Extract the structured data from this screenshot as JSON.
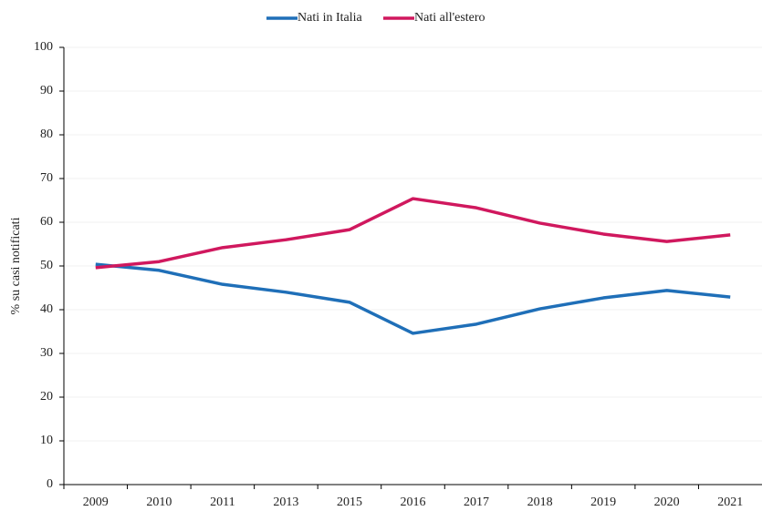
{
  "chart_data": {
    "type": "line",
    "ylabel": "% su casi notificati",
    "categories": [
      "2009",
      "2010",
      "2011",
      "2013",
      "2015",
      "2016",
      "2017",
      "2018",
      "2019",
      "2020",
      "2021"
    ],
    "series": [
      {
        "name": "Nati in Italia",
        "color": "#1f6fb8",
        "values": [
          50.4,
          49.0,
          45.8,
          44.0,
          41.7,
          34.6,
          36.7,
          40.2,
          42.7,
          44.4,
          42.9
        ]
      },
      {
        "name": "Nati all'estero",
        "color": "#d0185e",
        "values": [
          49.6,
          51.0,
          54.2,
          56.0,
          58.3,
          65.4,
          63.3,
          59.8,
          57.3,
          55.6,
          57.1
        ]
      }
    ],
    "ylim": [
      0,
      100
    ],
    "yticks": [
      0,
      10,
      20,
      30,
      40,
      50,
      60,
      70,
      80,
      90,
      100
    ],
    "grid": true,
    "legend": "top"
  }
}
